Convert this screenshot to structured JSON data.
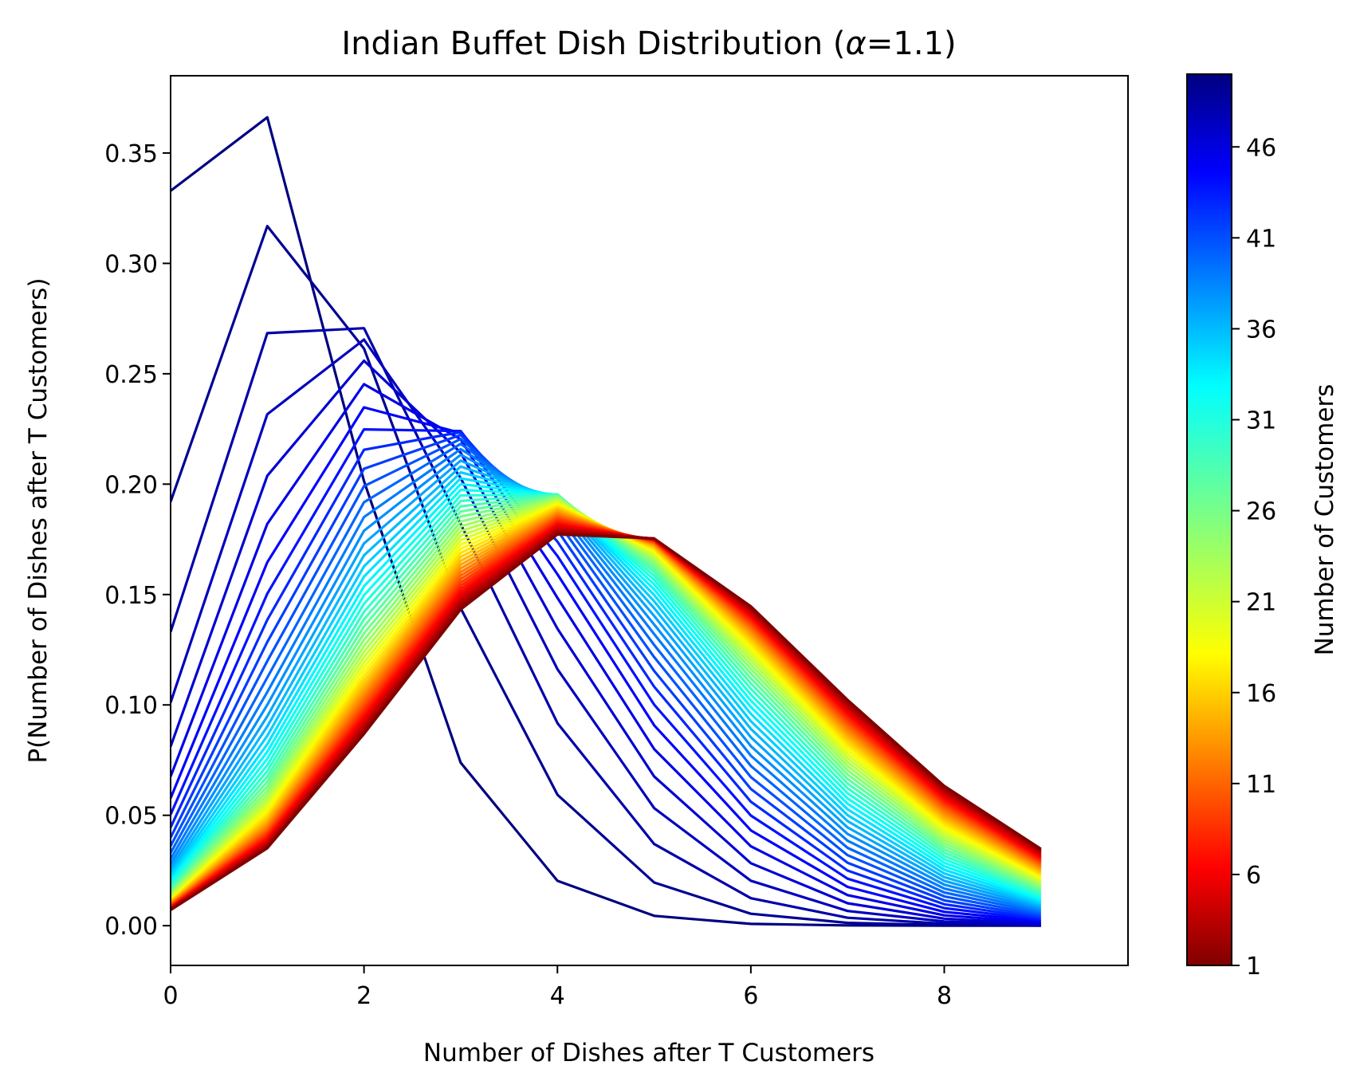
{
  "chart_data": {
    "type": "line",
    "title_prefix": "Indian Buffet Dish Distribution (",
    "title_alpha_symbol": "α",
    "title_alpha_value": "=1.1)",
    "alpha": 1.1,
    "xlabel": "Number of Dishes after T Customers",
    "ylabel": "P(Number of Dishes after T Customers)",
    "x": [
      0,
      1,
      2,
      3,
      4,
      5,
      6,
      7,
      8,
      9
    ],
    "xlim": [
      0,
      9.9
    ],
    "ylim": [
      -0.018,
      0.385
    ],
    "xticks": [
      0,
      2,
      4,
      6,
      8
    ],
    "xtick_labels": [
      "0",
      "2",
      "4",
      "6",
      "8"
    ],
    "yticks": [
      0.0,
      0.05,
      0.1,
      0.15,
      0.2,
      0.25,
      0.3,
      0.35
    ],
    "ytick_labels": [
      "0.00",
      "0.05",
      "0.10",
      "0.15",
      "0.20",
      "0.25",
      "0.30",
      "0.35"
    ],
    "series_count": 50,
    "series_description": "One line per T = 1..50 customers; y = Poisson pmf of dish count k with mean alpha * H_T",
    "colormap": "jet",
    "colorbar": {
      "label": "Number of Customers",
      "min": 1,
      "max": 50,
      "ticks": [
        1,
        6,
        11,
        16,
        21,
        26,
        31,
        36,
        41,
        46
      ],
      "tick_labels": [
        "1",
        "6",
        "11",
        "16",
        "21",
        "26",
        "31",
        "36",
        "41",
        "46"
      ]
    }
  }
}
